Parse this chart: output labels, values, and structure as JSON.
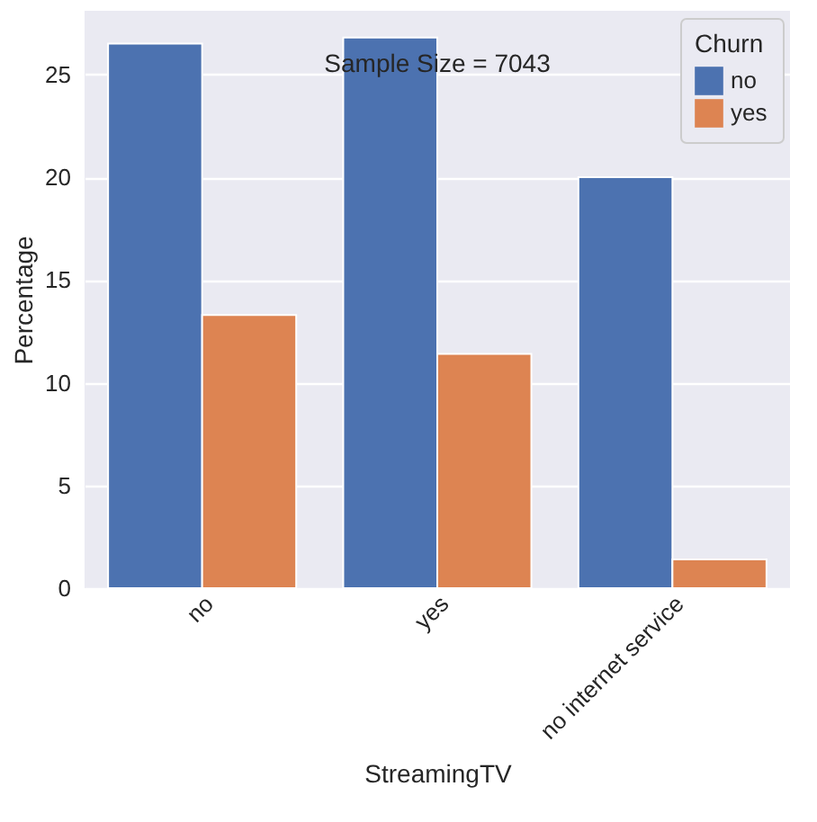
{
  "chart_data": {
    "type": "bar",
    "xlabel": "StreamingTV",
    "ylabel": "Percentage",
    "legend_title": "Churn",
    "categories": [
      "no",
      "yes",
      "no internet service"
    ],
    "series": [
      {
        "name": "no",
        "color": "#4c72b0",
        "values": [
          26.5,
          26.8,
          20.0
        ]
      },
      {
        "name": "yes",
        "color": "#dd8452",
        "values": [
          13.3,
          11.4,
          1.4
        ]
      }
    ],
    "ylim": [
      0,
      28.1
    ],
    "yticks": [
      0,
      5,
      10,
      15,
      20,
      25
    ],
    "grid": "y",
    "legend": "top right",
    "annotations": [
      "Sample Size = 7043"
    ]
  }
}
